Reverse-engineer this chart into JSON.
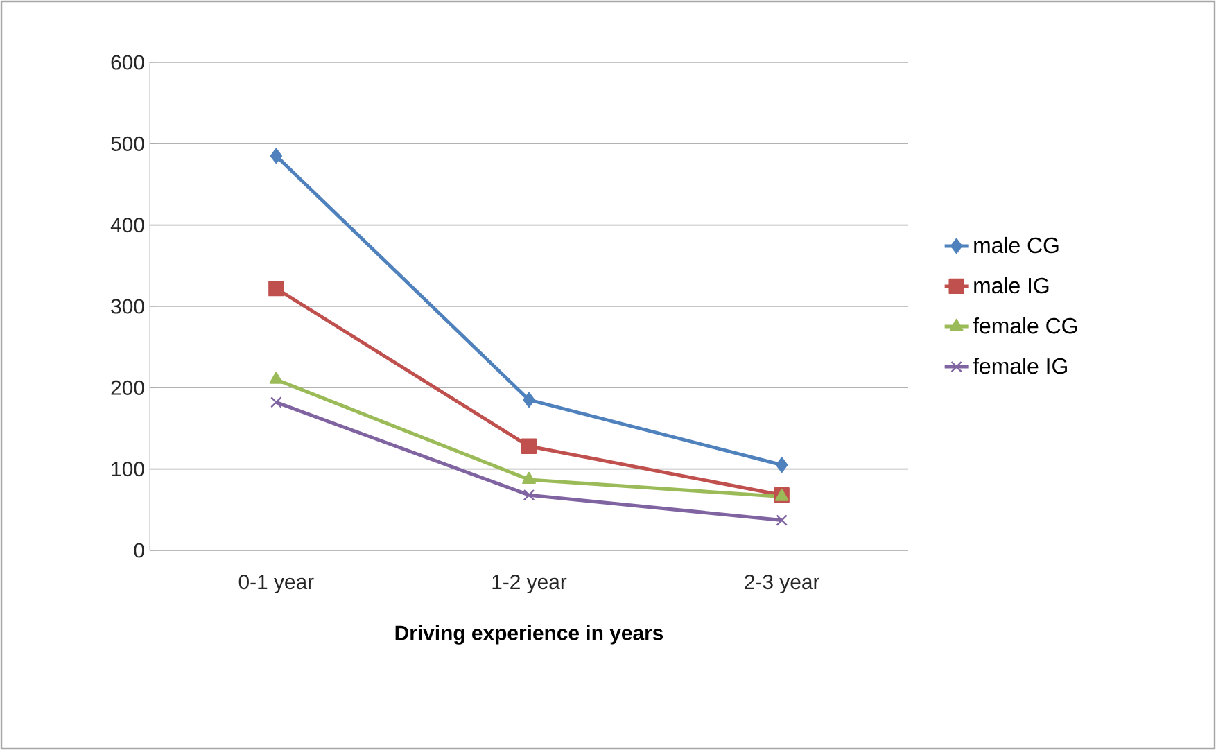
{
  "chart_data": {
    "type": "line",
    "xlabel": "Driving experience in years",
    "categories": [
      "0-1 year",
      "1-2 year",
      "2-3 year"
    ],
    "series": [
      {
        "name": "male CG",
        "color": "#4f81bd",
        "marker": "diamond",
        "values": [
          485,
          185,
          105
        ]
      },
      {
        "name": "male IG",
        "color": "#c0504d",
        "marker": "square",
        "values": [
          322,
          128,
          68
        ]
      },
      {
        "name": "female CG",
        "color": "#9bbb59",
        "marker": "triangle",
        "values": [
          210,
          87,
          66
        ]
      },
      {
        "name": "female IG",
        "color": "#8064a2",
        "marker": "cross",
        "values": [
          182,
          68,
          37
        ]
      }
    ],
    "ylim": [
      0,
      600
    ],
    "yticks": [
      0,
      100,
      200,
      300,
      400,
      500,
      600
    ],
    "grid": "y",
    "legend": "right"
  }
}
